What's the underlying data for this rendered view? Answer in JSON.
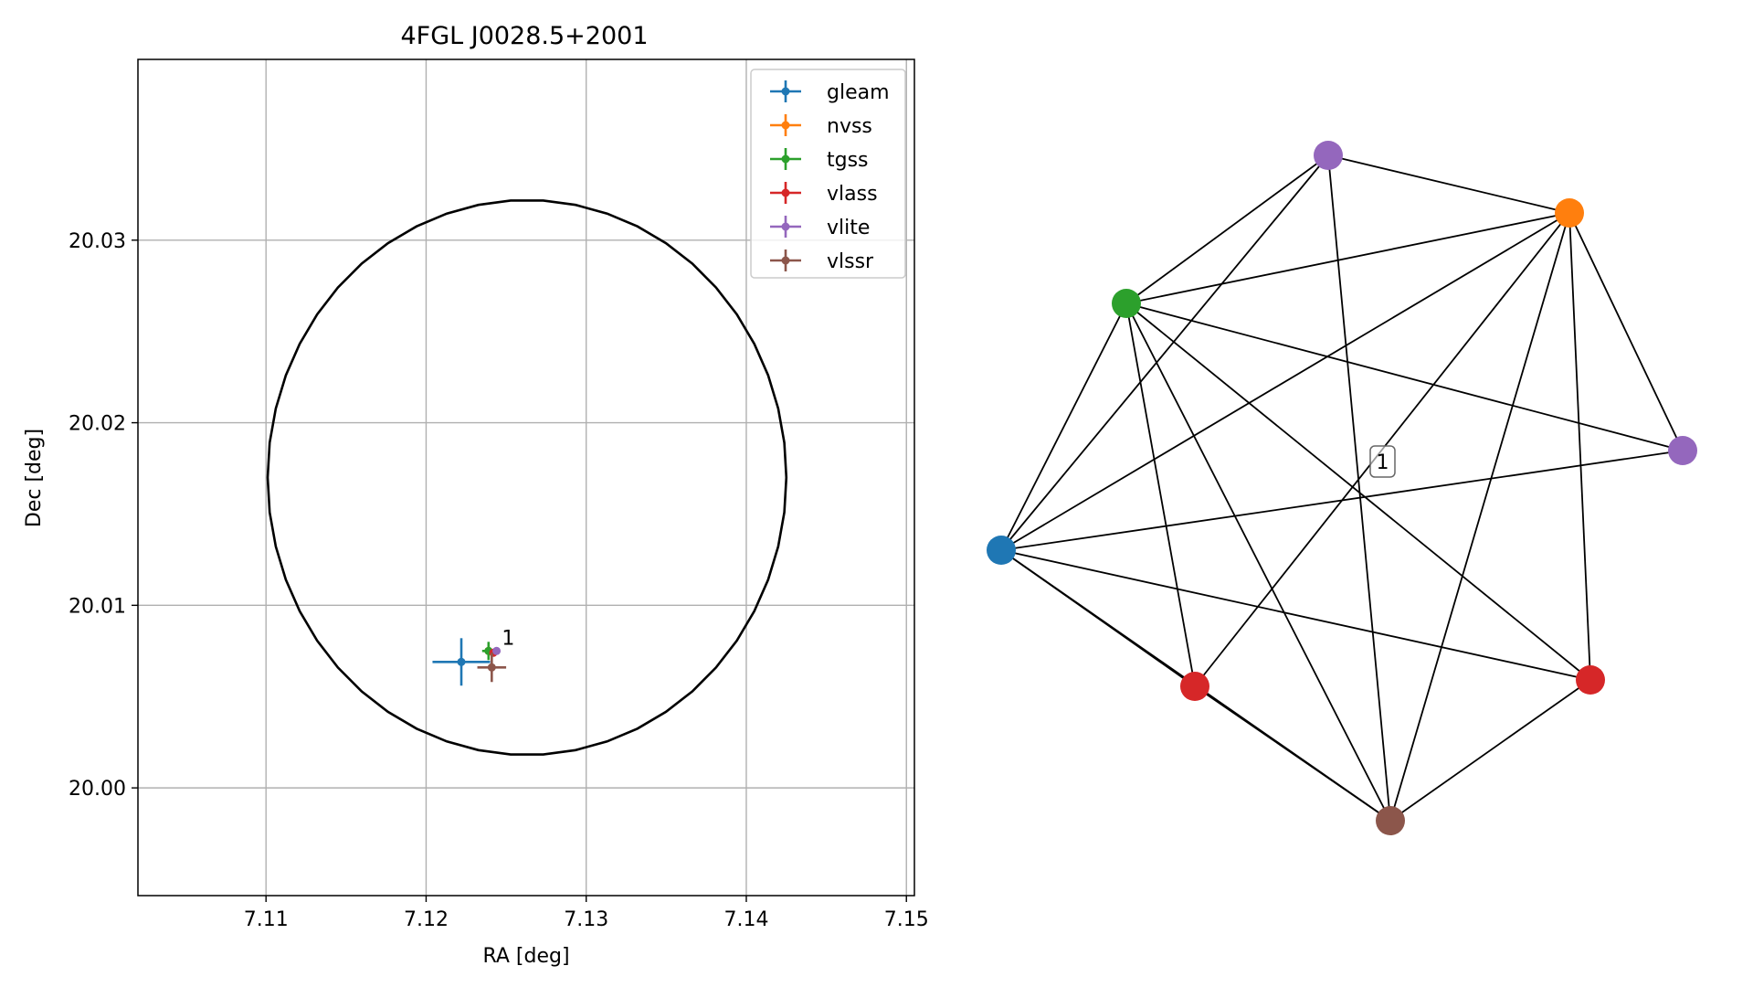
{
  "chart_data": [
    {
      "type": "scatter",
      "title": "4FGL J0028.5+2001",
      "xlabel": "RA [deg]",
      "ylabel": "Dec [deg]",
      "xlim": [
        7.102,
        7.1505
      ],
      "ylim": [
        19.9941,
        20.0399
      ],
      "xticks": [
        "7.11",
        "7.12",
        "7.13",
        "7.14",
        "7.15"
      ],
      "xtick_values": [
        7.11,
        7.12,
        7.13,
        7.14,
        7.15
      ],
      "yticks": [
        "20.00",
        "20.01",
        "20.02",
        "20.03"
      ],
      "ytick_values": [
        20.0,
        20.01,
        20.02,
        20.03
      ],
      "grid": true,
      "legend_position": "top-right",
      "ellipse": {
        "center": [
          7.1263,
          20.017
        ],
        "semi_axis_ra": 0.0162,
        "semi_axis_dec": 0.0152,
        "color": "#000000"
      },
      "series": [
        {
          "name": "gleam",
          "color": "#1f77b4",
          "points": [
            {
              "x": 7.1222,
              "y": 20.0069,
              "xerr": 0.0018,
              "yerr": 0.0013
            }
          ]
        },
        {
          "name": "nvss",
          "color": "#ff7f0e",
          "points": [
            {
              "x": 7.1239,
              "y": 20.0075,
              "xerr": 0.0003,
              "yerr": 0.0003
            }
          ]
        },
        {
          "name": "tgss",
          "color": "#2ca02c",
          "points": [
            {
              "x": 7.1239,
              "y": 20.0075,
              "xerr": 0.0004,
              "yerr": 0.0005
            }
          ]
        },
        {
          "name": "vlass",
          "color": "#d62728",
          "points": [
            {
              "x": 7.1242,
              "y": 20.0074,
              "xerr": 0.0001,
              "yerr": 0.0001
            }
          ]
        },
        {
          "name": "vlite",
          "color": "#9467bd",
          "points": [
            {
              "x": 7.1244,
              "y": 20.0075,
              "xerr": 0.0001,
              "yerr": 0.0001
            }
          ]
        },
        {
          "name": "vlssr",
          "color": "#8c564b",
          "points": [
            {
              "x": 7.1241,
              "y": 20.0066,
              "xerr": 0.0009,
              "yerr": 0.0008
            }
          ]
        }
      ],
      "annotations": [
        {
          "text": "1",
          "x": 7.1245,
          "y": 20.0078
        }
      ]
    },
    {
      "type": "network",
      "node_colors": [
        "#1f77b4",
        "#d62728",
        "#8c564b",
        "#d62728",
        "#9467bd",
        "#ff7f0e",
        "#9467bd",
        "#2ca02c"
      ],
      "edges": [
        [
          0,
          1
        ],
        [
          0,
          2
        ],
        [
          0,
          3
        ],
        [
          0,
          4
        ],
        [
          0,
          5
        ],
        [
          0,
          6
        ],
        [
          0,
          7
        ],
        [
          1,
          2
        ],
        [
          1,
          5
        ],
        [
          1,
          7
        ],
        [
          2,
          3
        ],
        [
          2,
          5
        ],
        [
          2,
          6
        ],
        [
          2,
          7
        ],
        [
          3,
          5
        ],
        [
          3,
          7
        ],
        [
          4,
          5
        ],
        [
          4,
          7
        ],
        [
          5,
          6
        ],
        [
          5,
          7
        ],
        [
          6,
          7
        ]
      ],
      "group_label": "1"
    }
  ]
}
